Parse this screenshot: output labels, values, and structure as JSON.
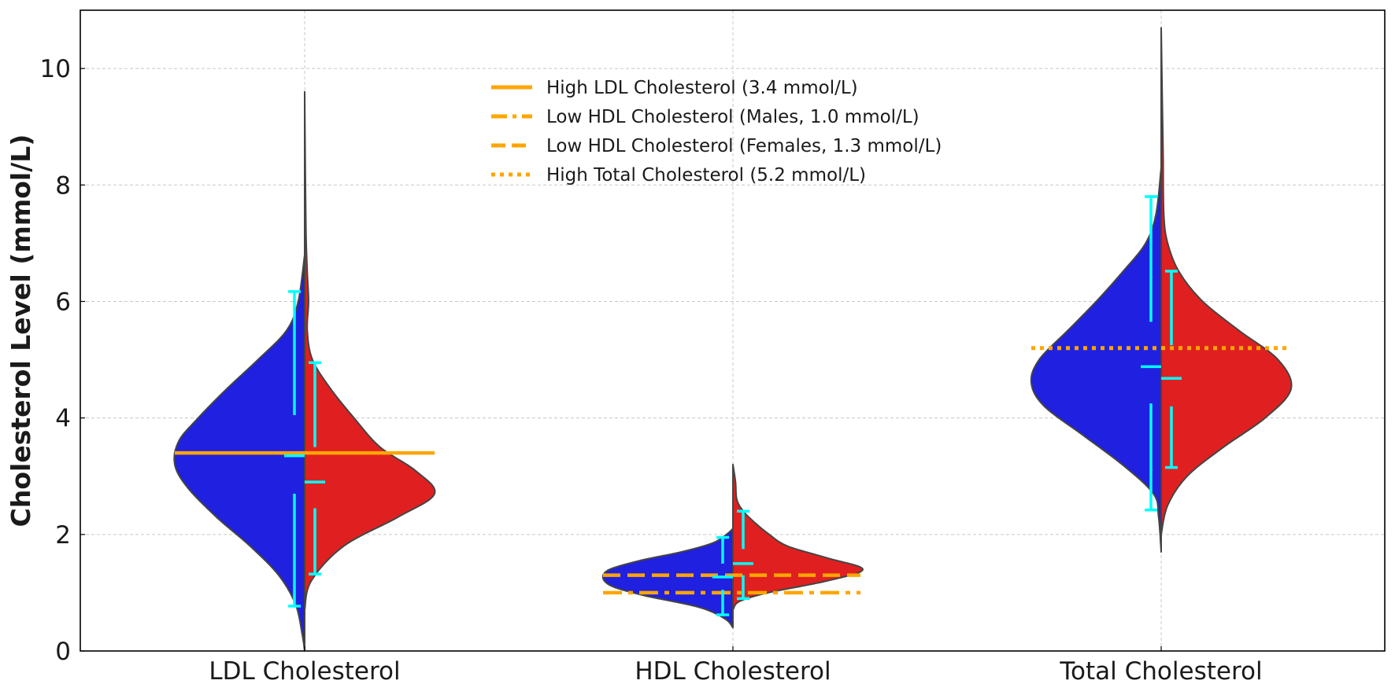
{
  "colors": {
    "left_half": "#2020e0",
    "right_half": "#e02020",
    "threshold": "#ffa500",
    "error_bar": "#00ffff",
    "outline": "#444444",
    "grid": "#c8c8c8"
  },
  "chart_data": {
    "type": "violin",
    "split": true,
    "title": "",
    "xlabel": "",
    "ylabel": "Cholesterol Level (mmol/L)",
    "ylim": [
      0,
      11
    ],
    "yticks": [
      "0",
      "2",
      "4",
      "6",
      "8",
      "10"
    ],
    "grid": true,
    "legend_position": "top-center",
    "categories": [
      "LDL Cholesterol",
      "HDL Cholesterol",
      "Total Cholesterol"
    ],
    "series": [
      {
        "side": "left",
        "groups": [
          {
            "ymin": 0.0,
            "ymax": 6.8,
            "density": [
              [
                0.0,
                0.0
              ],
              [
                0.3,
                0.02
              ],
              [
                0.8,
                0.07
              ],
              [
                1.3,
                0.2
              ],
              [
                1.8,
                0.42
              ],
              [
                2.3,
                0.68
              ],
              [
                2.8,
                0.9
              ],
              [
                3.2,
                1.0
              ],
              [
                3.6,
                0.97
              ],
              [
                4.0,
                0.82
              ],
              [
                4.5,
                0.6
              ],
              [
                5.0,
                0.36
              ],
              [
                5.5,
                0.14
              ],
              [
                6.0,
                0.05
              ],
              [
                6.8,
                0.0
              ]
            ],
            "mean": 3.35,
            "err_low": [
              0.77,
              2.7
            ],
            "err_high": [
              4.05,
              6.17
            ]
          },
          {
            "ymin": 0.4,
            "ymax": 2.1,
            "density": [
              [
                0.4,
                0.0
              ],
              [
                0.55,
                0.06
              ],
              [
                0.75,
                0.26
              ],
              [
                0.95,
                0.68
              ],
              [
                1.1,
                0.92
              ],
              [
                1.25,
                1.0
              ],
              [
                1.4,
                0.95
              ],
              [
                1.55,
                0.72
              ],
              [
                1.7,
                0.4
              ],
              [
                1.85,
                0.16
              ],
              [
                2.0,
                0.05
              ],
              [
                2.1,
                0.0
              ]
            ],
            "mean": 1.27,
            "err_low": [
              0.62,
              1.05
            ],
            "err_high": [
              1.5,
              1.95
            ]
          },
          {
            "ymin": 1.7,
            "ymax": 8.3,
            "density": [
              [
                1.7,
                0.0
              ],
              [
                2.3,
                0.02
              ],
              [
                2.7,
                0.06
              ],
              [
                3.2,
                0.3
              ],
              [
                3.7,
                0.6
              ],
              [
                4.2,
                0.9
              ],
              [
                4.6,
                1.0
              ],
              [
                5.0,
                0.94
              ],
              [
                5.5,
                0.72
              ],
              [
                6.0,
                0.5
              ],
              [
                6.5,
                0.3
              ],
              [
                7.0,
                0.12
              ],
              [
                7.5,
                0.04
              ],
              [
                8.3,
                0.0
              ]
            ],
            "mean": 4.88,
            "err_low": [
              2.42,
              4.25
            ],
            "err_high": [
              5.65,
              7.8
            ]
          }
        ]
      },
      {
        "side": "right",
        "groups": [
          {
            "ymin": 0.7,
            "ymax": 9.6,
            "density": [
              [
                0.7,
                0.0
              ],
              [
                1.2,
                0.05
              ],
              [
                1.8,
                0.3
              ],
              [
                2.3,
                0.72
              ],
              [
                2.7,
                1.0
              ],
              [
                3.1,
                0.85
              ],
              [
                3.5,
                0.58
              ],
              [
                4.0,
                0.38
              ],
              [
                4.5,
                0.2
              ],
              [
                5.0,
                0.06
              ],
              [
                5.5,
                0.02
              ],
              [
                6.0,
                0.03
              ],
              [
                6.5,
                0.02
              ],
              [
                7.2,
                0.01
              ],
              [
                8.5,
                0.004
              ],
              [
                9.6,
                0.0
              ]
            ],
            "mean": 2.9,
            "err_low": [
              1.32,
              2.45
            ],
            "err_high": [
              3.5,
              4.95
            ]
          },
          {
            "ymin": 0.7,
            "ymax": 3.2,
            "density": [
              [
                0.7,
                0.0
              ],
              [
                0.85,
                0.05
              ],
              [
                1.0,
                0.27
              ],
              [
                1.2,
                0.72
              ],
              [
                1.4,
                1.0
              ],
              [
                1.6,
                0.72
              ],
              [
                1.8,
                0.42
              ],
              [
                2.0,
                0.28
              ],
              [
                2.2,
                0.17
              ],
              [
                2.4,
                0.08
              ],
              [
                2.6,
                0.03
              ],
              [
                2.9,
                0.02
              ],
              [
                3.2,
                0.0
              ]
            ],
            "mean": 1.5,
            "err_low": [
              0.9,
              1.3
            ],
            "err_high": [
              1.75,
              2.4
            ]
          },
          {
            "ymin": 2.0,
            "ymax": 10.7,
            "density": [
              [
                2.0,
                0.0
              ],
              [
                2.5,
                0.05
              ],
              [
                3.0,
                0.2
              ],
              [
                3.5,
                0.48
              ],
              [
                4.0,
                0.8
              ],
              [
                4.5,
                1.0
              ],
              [
                5.0,
                0.9
              ],
              [
                5.5,
                0.6
              ],
              [
                6.0,
                0.32
              ],
              [
                6.5,
                0.14
              ],
              [
                7.0,
                0.05
              ],
              [
                7.5,
                0.02
              ],
              [
                8.5,
                0.015
              ],
              [
                9.5,
                0.008
              ],
              [
                10.7,
                0.0
              ]
            ],
            "mean": 4.68,
            "err_low": [
              3.15,
              4.2
            ],
            "err_high": [
              5.25,
              6.52
            ]
          }
        ]
      }
    ],
    "thresholds": [
      {
        "label": "High LDL Cholesterol (3.4 mmol/L)",
        "value": 3.4,
        "group": 0,
        "style": "solid"
      },
      {
        "label": "Low HDL Cholesterol (Males, 1.0 mmol/L)",
        "value": 1.0,
        "group": 1,
        "style": "dashdot"
      },
      {
        "label": "Low HDL Cholesterol (Females, 1.3 mmol/L)",
        "value": 1.3,
        "group": 1,
        "style": "dashed"
      },
      {
        "label": "High Total Cholesterol (5.2 mmol/L)",
        "value": 5.2,
        "group": 2,
        "style": "dotted"
      }
    ]
  }
}
